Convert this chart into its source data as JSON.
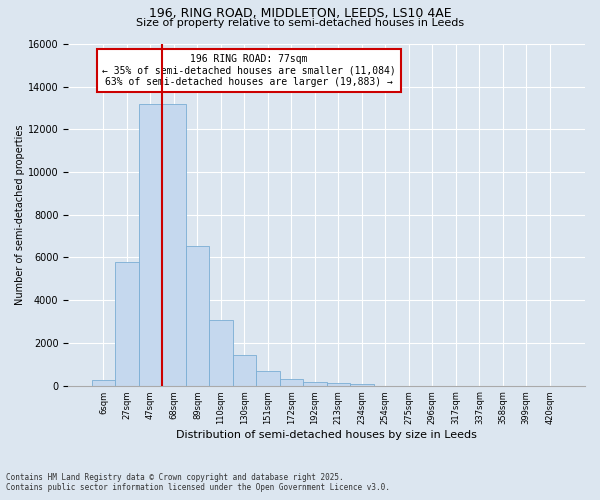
{
  "title1": "196, RING ROAD, MIDDLETON, LEEDS, LS10 4AE",
  "title2": "Size of property relative to semi-detached houses in Leeds",
  "xlabel": "Distribution of semi-detached houses by size in Leeds",
  "ylabel": "Number of semi-detached properties",
  "categories": [
    "6sqm",
    "27sqm",
    "47sqm",
    "68sqm",
    "89sqm",
    "110sqm",
    "130sqm",
    "151sqm",
    "172sqm",
    "192sqm",
    "213sqm",
    "234sqm",
    "254sqm",
    "275sqm",
    "296sqm",
    "317sqm",
    "337sqm",
    "358sqm",
    "399sqm",
    "420sqm"
  ],
  "values": [
    280,
    5800,
    13200,
    13200,
    6550,
    3050,
    1450,
    680,
    310,
    190,
    110,
    60,
    0,
    0,
    0,
    0,
    0,
    0,
    0,
    0
  ],
  "bar_color": "#c5d8ee",
  "bar_edge_color": "#7aadd4",
  "vline_color": "#cc0000",
  "vline_x_index": 3,
  "annotation_title": "196 RING ROAD: 77sqm",
  "annotation_line1": "← 35% of semi-detached houses are smaller (11,084)",
  "annotation_line2": "63% of semi-detached houses are larger (19,883) →",
  "annotation_box_color": "#ffffff",
  "annotation_box_edge": "#cc0000",
  "ylim": [
    0,
    16000
  ],
  "yticks": [
    0,
    2000,
    4000,
    6000,
    8000,
    10000,
    12000,
    14000,
    16000
  ],
  "footer1": "Contains HM Land Registry data © Crown copyright and database right 2025.",
  "footer2": "Contains public sector information licensed under the Open Government Licence v3.0.",
  "bg_color": "#dce6f0",
  "plot_bg_color": "#dce6f0",
  "grid_color": "#ffffff",
  "title1_fontsize": 9,
  "title2_fontsize": 8,
  "xlabel_fontsize": 8,
  "ylabel_fontsize": 7,
  "xtick_fontsize": 6,
  "ytick_fontsize": 7,
  "footer_fontsize": 5.5
}
